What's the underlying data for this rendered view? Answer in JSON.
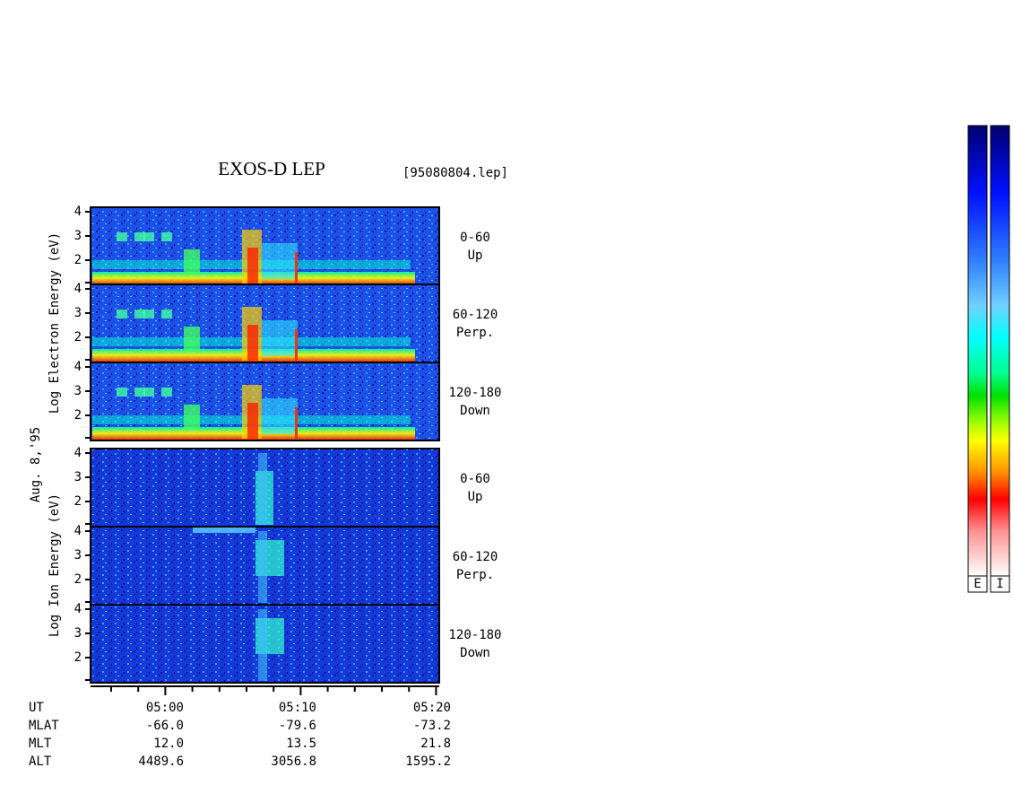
{
  "title": "EXOS-D LEP",
  "file": "[95080804.lep]",
  "date": "Aug. 8,'95",
  "electron_label": "Log Electron Energy (eV)",
  "ion_label": "Log Ion Energy (eV)",
  "energy_ticks": [
    "4",
    "3",
    "2"
  ],
  "panels": [
    {
      "range": "0-60",
      "direction": "Up"
    },
    {
      "range": "60-120",
      "direction": "Perp."
    },
    {
      "range": "120-180",
      "direction": "Down"
    }
  ],
  "time_ticks": [
    "05:00",
    "05:10",
    "05:20"
  ],
  "ephemeris": {
    "time_row": "UT",
    "rows": [
      {
        "name": "MLAT",
        "values": [
          "-66.0",
          "-79.6",
          "-73.2"
        ]
      },
      {
        "name": "MLT",
        "values": [
          "12.0",
          "13.5",
          "21.8"
        ]
      },
      {
        "name": "ALT",
        "values": [
          "4489.6",
          "3056.8",
          "1595.2"
        ]
      }
    ]
  },
  "colorbars": [
    "E",
    "I"
  ]
}
